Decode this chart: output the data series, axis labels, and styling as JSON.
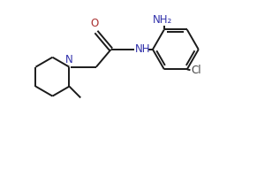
{
  "bg_color": "#ffffff",
  "bond_color": "#1a1a1a",
  "N_color": "#3030aa",
  "O_color": "#aa3030",
  "Cl_color": "#444444",
  "lw": 1.4,
  "figsize": [
    2.91,
    1.91
  ],
  "dpi": 100,
  "xlim": [
    0,
    9.5
  ],
  "ylim": [
    0,
    6.2
  ]
}
